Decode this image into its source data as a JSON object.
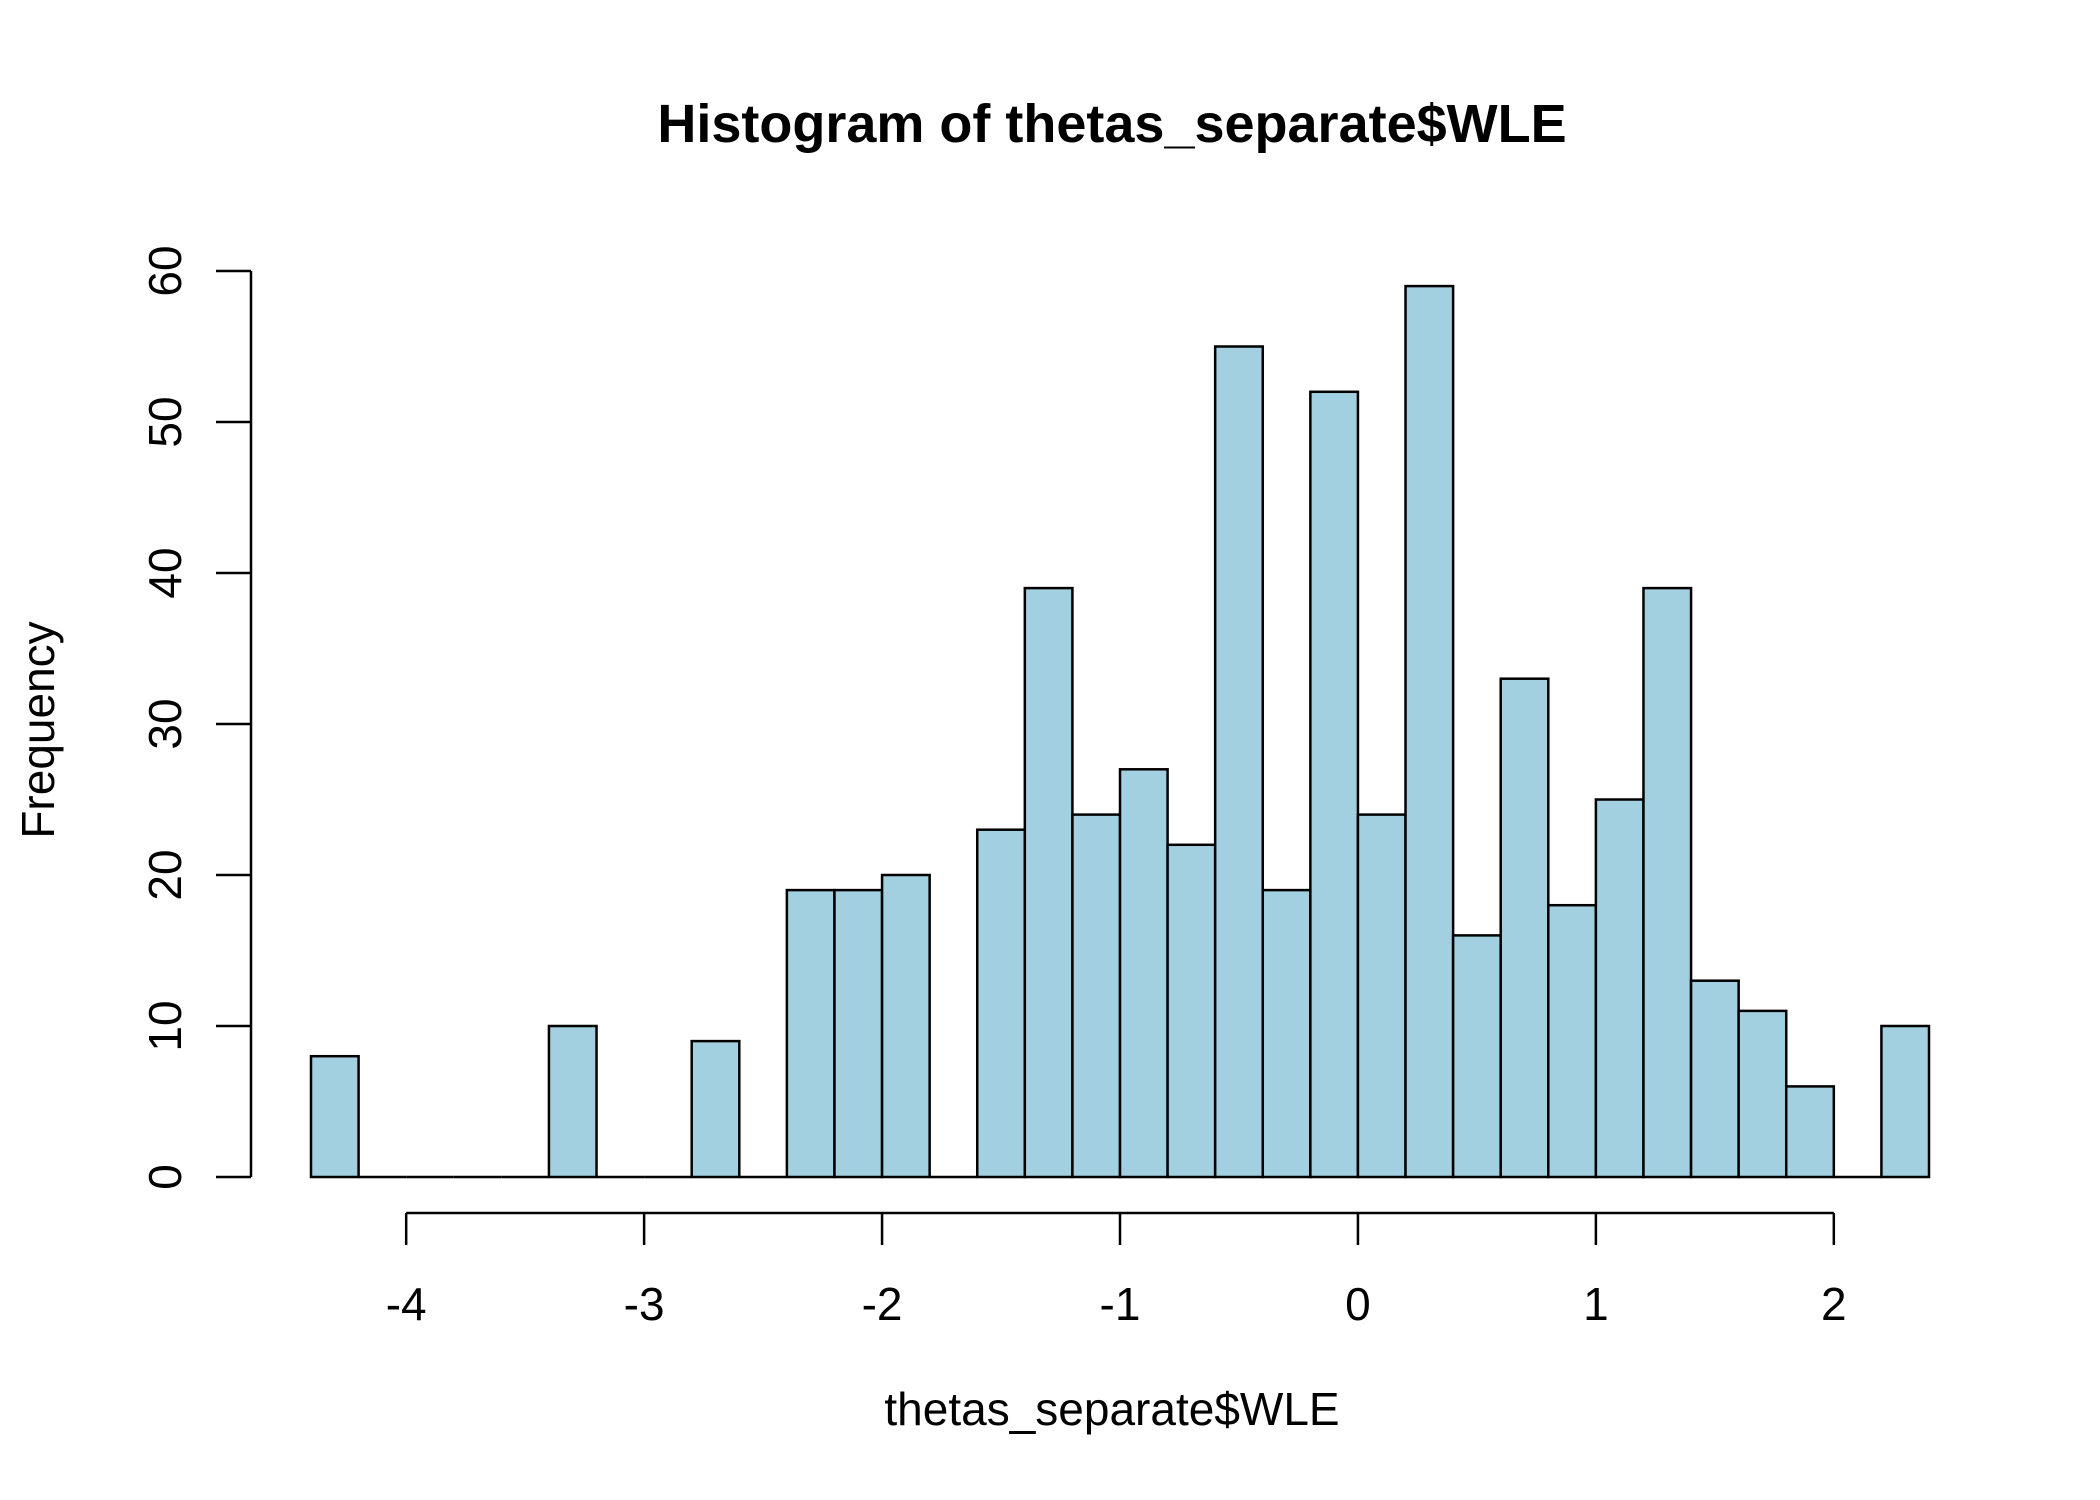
{
  "chart_data": {
    "type": "bar",
    "title": "Histogram of thetas_separate$WLE",
    "xlabel": "thetas_separate$WLE",
    "ylabel": "Frequency",
    "bar_color": "#a2d0e0",
    "border_color": "#000000",
    "bin_width": 0.2,
    "bins": [
      {
        "x0": -4.4,
        "x1": -4.2,
        "count": 8
      },
      {
        "x0": -4.2,
        "x1": -4.0,
        "count": 0
      },
      {
        "x0": -4.0,
        "x1": -3.8,
        "count": 0
      },
      {
        "x0": -3.8,
        "x1": -3.6,
        "count": 0
      },
      {
        "x0": -3.6,
        "x1": -3.4,
        "count": 0
      },
      {
        "x0": -3.4,
        "x1": -3.2,
        "count": 10
      },
      {
        "x0": -3.2,
        "x1": -3.0,
        "count": 0
      },
      {
        "x0": -3.0,
        "x1": -2.8,
        "count": 0
      },
      {
        "x0": -2.8,
        "x1": -2.6,
        "count": 9
      },
      {
        "x0": -2.6,
        "x1": -2.4,
        "count": 0
      },
      {
        "x0": -2.4,
        "x1": -2.2,
        "count": 19
      },
      {
        "x0": -2.2,
        "x1": -2.0,
        "count": 19
      },
      {
        "x0": -2.0,
        "x1": -1.8,
        "count": 20
      },
      {
        "x0": -1.8,
        "x1": -1.6,
        "count": 0
      },
      {
        "x0": -1.6,
        "x1": -1.4,
        "count": 23
      },
      {
        "x0": -1.4,
        "x1": -1.2,
        "count": 39
      },
      {
        "x0": -1.2,
        "x1": -1.0,
        "count": 24
      },
      {
        "x0": -1.0,
        "x1": -0.8,
        "count": 27
      },
      {
        "x0": -0.8,
        "x1": -0.6,
        "count": 22
      },
      {
        "x0": -0.6,
        "x1": -0.4,
        "count": 55
      },
      {
        "x0": -0.4,
        "x1": -0.2,
        "count": 19
      },
      {
        "x0": -0.2,
        "x1": 0.0,
        "count": 52
      },
      {
        "x0": 0.0,
        "x1": 0.2,
        "count": 24
      },
      {
        "x0": 0.2,
        "x1": 0.4,
        "count": 59
      },
      {
        "x0": 0.4,
        "x1": 0.6,
        "count": 16
      },
      {
        "x0": 0.6,
        "x1": 0.8,
        "count": 33
      },
      {
        "x0": 0.8,
        "x1": 1.0,
        "count": 18
      },
      {
        "x0": 1.0,
        "x1": 1.2,
        "count": 25
      },
      {
        "x0": 1.2,
        "x1": 1.4,
        "count": 39
      },
      {
        "x0": 1.4,
        "x1": 1.6,
        "count": 13
      },
      {
        "x0": 1.6,
        "x1": 1.8,
        "count": 11
      },
      {
        "x0": 1.8,
        "x1": 2.0,
        "count": 6
      },
      {
        "x0": 2.0,
        "x1": 2.2,
        "count": 0
      },
      {
        "x0": 2.2,
        "x1": 2.4,
        "count": 10
      }
    ],
    "x_ticks": [
      "-4",
      "-3",
      "-2",
      "-1",
      "0",
      "1",
      "2"
    ],
    "y_ticks": [
      "0",
      "10",
      "20",
      "30",
      "40",
      "50",
      "60"
    ],
    "xlim": [
      -4.4,
      2.4
    ],
    "ylim": [
      0,
      60
    ],
    "grid": false,
    "legend": "none"
  }
}
